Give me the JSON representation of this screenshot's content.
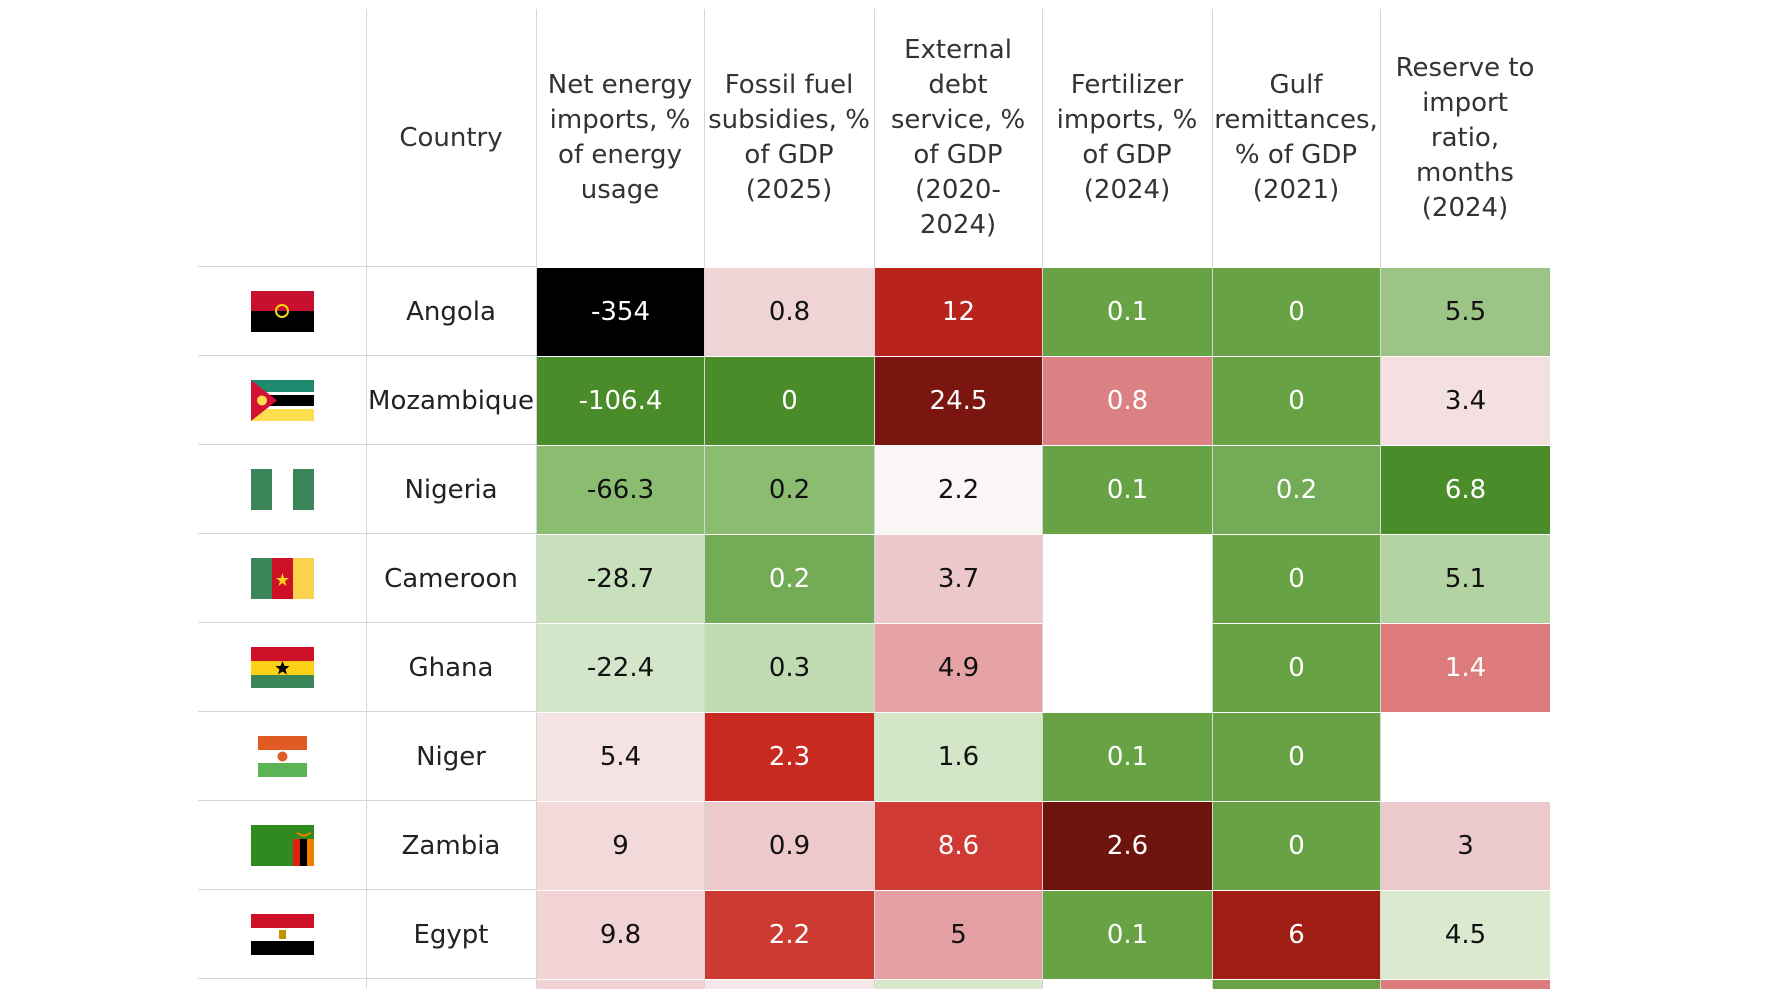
{
  "header": {
    "country_label": "Country",
    "columns": [
      "Net energy imports, % of energy usage",
      "Fossil fuel subsidies, % of GDP (2025)",
      "External debt service, % of GDP (2020-2024)",
      "Fertilizer imports, % of GDP (2024)",
      "Gulf remittances, % of GDP (2021)",
      "Reserve to import ratio, months (2024)"
    ]
  },
  "rows": [
    {
      "country": "Angola",
      "values": [
        -354,
        0.8,
        12,
        0.1,
        0,
        5.5
      ],
      "colors": [
        "#000000",
        "#f0d3d5",
        "#b8241c",
        "#67a345",
        "#67a345",
        "#9dc487"
      ]
    },
    {
      "country": "Mozambique",
      "values": [
        -106.4,
        0,
        24.5,
        0.8,
        0,
        3.4
      ],
      "colors": [
        "#4a8c2a",
        "#4a8c2a",
        "#7a1510",
        "#db8183",
        "#67a345",
        "#f5e0e1"
      ]
    },
    {
      "country": "Nigeria",
      "values": [
        -66.3,
        0.2,
        2.2,
        0.1,
        0.2,
        6.8
      ],
      "colors": [
        "#8bbd70",
        "#8bbd70",
        "#faf6f6",
        "#67a345",
        "#74ab56",
        "#4a8c2a"
      ]
    },
    {
      "country": "Cameroon",
      "values": [
        -28.7,
        0.2,
        3.7,
        null,
        0,
        5.1
      ],
      "colors": [
        "#c9e0bc",
        "#74ab56",
        "#ecc8ca",
        "#ffffff",
        "#67a345",
        "#b3d4a2"
      ]
    },
    {
      "country": "Ghana",
      "values": [
        -22.4,
        0.3,
        4.9,
        null,
        0,
        1.4
      ],
      "colors": [
        "#d4e6c9",
        "#c0dab2",
        "#e5a3a5",
        "#ffffff",
        "#67a345",
        "#de7b7d"
      ]
    },
    {
      "country": "Niger",
      "values": [
        5.4,
        2.3,
        1.6,
        0.1,
        0,
        null
      ],
      "colors": [
        "#f5e3e4",
        "#c82a22",
        "#d3e6c8",
        "#67a345",
        "#67a345",
        "#ffffff"
      ]
    },
    {
      "country": "Zambia",
      "values": [
        9,
        0.9,
        8.6,
        2.6,
        0,
        3
      ],
      "colors": [
        "#f2d9da",
        "#eec9cb",
        "#d03a35",
        "#6e140f",
        "#67a345",
        "#eccacc"
      ]
    },
    {
      "country": "Egypt",
      "values": [
        9.8,
        2.2,
        5,
        0.1,
        6,
        4.5
      ],
      "colors": [
        "#f1d3d5",
        "#cd3a32",
        "#e39fa1",
        "#67a345",
        "#a01e14",
        "#dbeacf"
      ]
    }
  ]
}
